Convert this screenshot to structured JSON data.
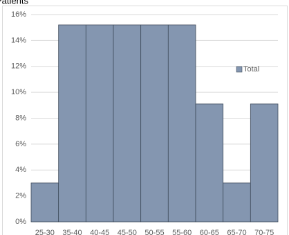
{
  "chart_data": {
    "type": "bar",
    "title": "Patients",
    "categories": [
      "25-30",
      "35-40",
      "40-45",
      "45-50",
      "50-55",
      "55-60",
      "60-65",
      "65-70",
      "70-75"
    ],
    "series": [
      {
        "name": "Total",
        "color": "#8496b0",
        "values": [
          3,
          15.2,
          15.2,
          15.2,
          15.2,
          15.2,
          9.1,
          3,
          9.1
        ]
      }
    ],
    "ylim": [
      0,
      16
    ],
    "yticks": [
      {
        "value": 0,
        "label": "0%"
      },
      {
        "value": 2,
        "label": "2%"
      },
      {
        "value": 4,
        "label": "4%"
      },
      {
        "value": 6,
        "label": "6%"
      },
      {
        "value": 8,
        "label": "8%"
      },
      {
        "value": 10,
        "label": "10%"
      },
      {
        "value": 12,
        "label": "12%"
      },
      {
        "value": 14,
        "label": "14%"
      },
      {
        "value": 16,
        "label": "16%"
      }
    ],
    "grid": true,
    "legend": "right"
  }
}
